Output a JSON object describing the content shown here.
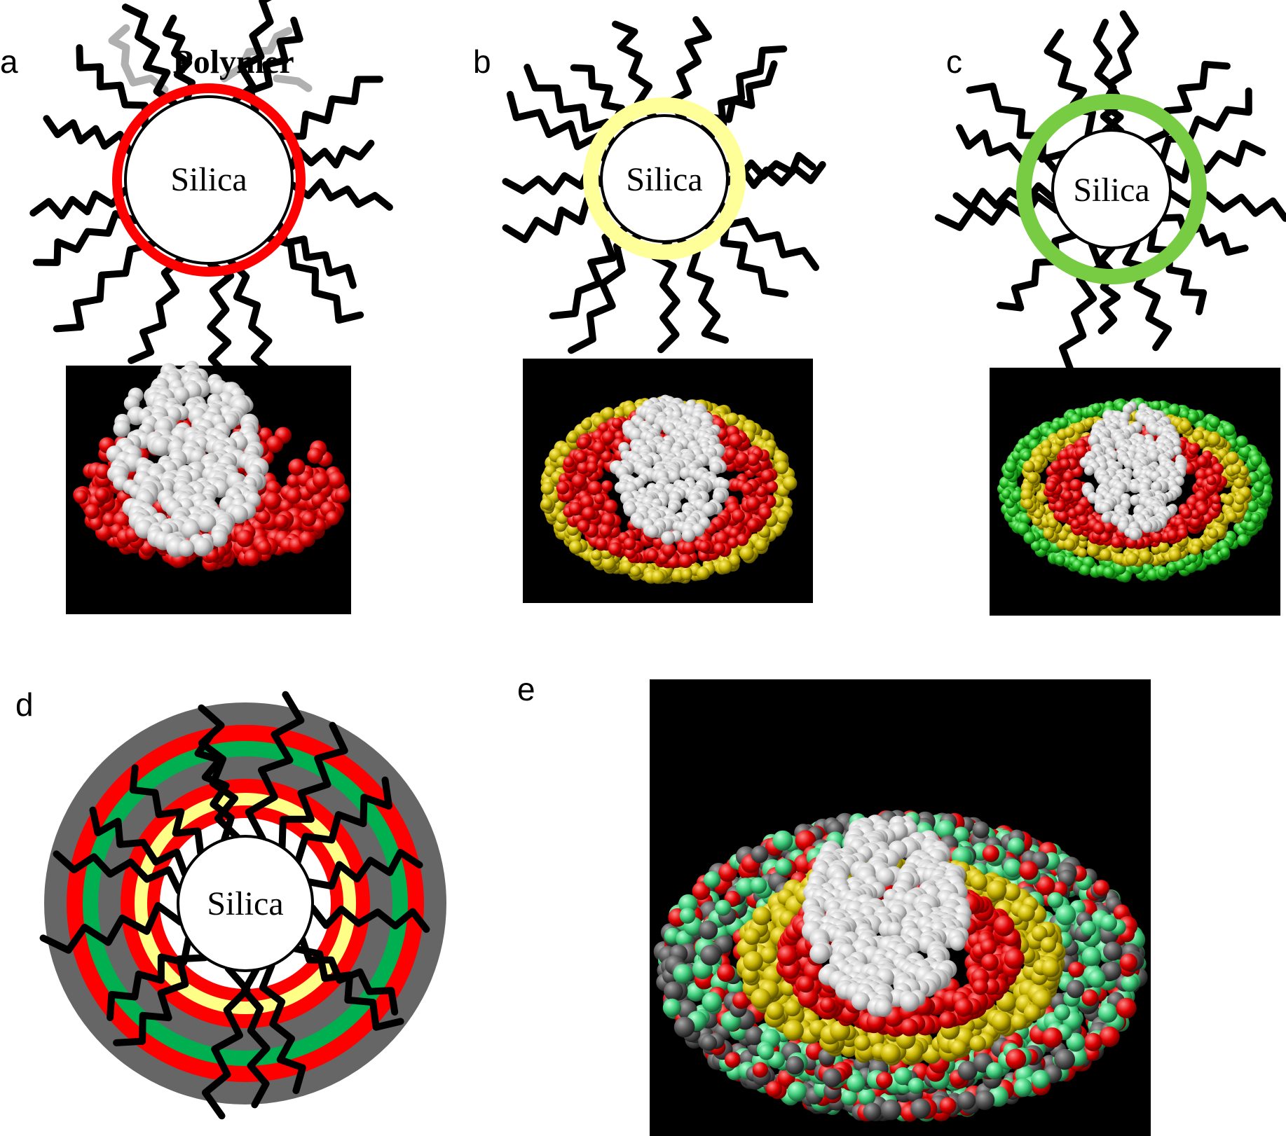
{
  "panels": {
    "a": {
      "letter": "a",
      "core_label": "Silica",
      "polymer_label": "Polymer",
      "shell_colors": [
        "#ff0000"
      ]
    },
    "b": {
      "letter": "b",
      "core_label": "Silica",
      "shell_colors": [
        "#ffff99"
      ]
    },
    "c": {
      "letter": "c",
      "core_label": "Silica",
      "shell_colors": [
        "#77cc44"
      ]
    },
    "d": {
      "letter": "d",
      "core_label": "Silica",
      "shell_colors": [
        "#ffff88",
        "#ff0000",
        "#666666",
        "#00b050",
        "#ff0000",
        "#666666"
      ]
    },
    "e": {
      "letter": "e"
    }
  },
  "colors": {
    "chain": "#000000",
    "silica_bead": "#d6d6d6",
    "red_bead": "#e00000",
    "yellow_bead": "#c8b400",
    "green_bead": "#1fb81f",
    "light_green_bead": "#3dcc7a",
    "gray_bead": "#555555",
    "frame": "#000000"
  }
}
